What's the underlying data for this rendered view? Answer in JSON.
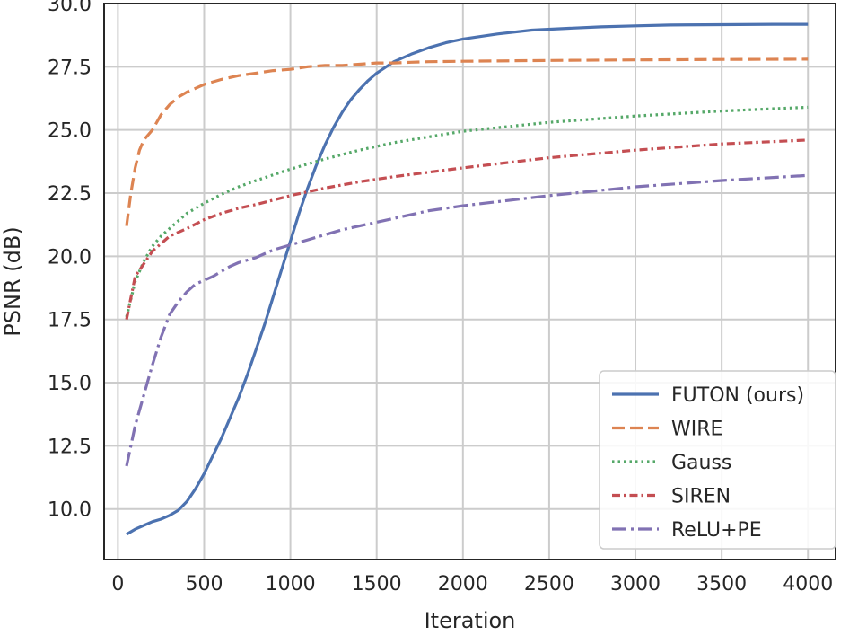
{
  "chart_data": {
    "type": "line",
    "xlabel": "Iteration",
    "ylabel": "PSNR (dB)",
    "xlim": [
      -80,
      4160
    ],
    "ylim": [
      8.0,
      30.0
    ],
    "xticks": [
      0,
      500,
      1000,
      1500,
      2000,
      2500,
      3000,
      3500,
      4000
    ],
    "yticks": [
      10.0,
      12.5,
      15.0,
      17.5,
      20.0,
      22.5,
      25.0,
      27.5,
      30.0
    ],
    "xtick_labels": [
      "0",
      "500",
      "1000",
      "1500",
      "2000",
      "2500",
      "3000",
      "3500",
      "4000"
    ],
    "ytick_labels": [
      "10.0",
      "12.5",
      "15.0",
      "17.5",
      "20.0",
      "22.5",
      "25.0",
      "27.5",
      "30.0"
    ],
    "grid": true,
    "legend_position": "bottom-right",
    "series": [
      {
        "name": "FUTON (ours)",
        "color": "#4c72b0",
        "dash": "solid",
        "x": [
          50,
          100,
          150,
          200,
          250,
          300,
          350,
          400,
          450,
          500,
          550,
          600,
          650,
          700,
          750,
          800,
          850,
          900,
          950,
          1000,
          1050,
          1100,
          1150,
          1200,
          1250,
          1300,
          1350,
          1400,
          1450,
          1500,
          1600,
          1700,
          1800,
          1900,
          2000,
          2200,
          2400,
          2600,
          2800,
          3000,
          3200,
          3400,
          3600,
          3800,
          4000
        ],
        "y": [
          9.0,
          9.2,
          9.35,
          9.5,
          9.6,
          9.75,
          9.95,
          10.3,
          10.8,
          11.4,
          12.1,
          12.8,
          13.6,
          14.4,
          15.3,
          16.3,
          17.3,
          18.4,
          19.5,
          20.6,
          21.7,
          22.7,
          23.6,
          24.4,
          25.1,
          25.7,
          26.2,
          26.6,
          26.95,
          27.25,
          27.7,
          28.0,
          28.25,
          28.45,
          28.6,
          28.8,
          28.95,
          29.02,
          29.08,
          29.12,
          29.15,
          29.16,
          29.17,
          29.18,
          29.18
        ]
      },
      {
        "name": "WIRE",
        "color": "#dd8452",
        "dash": "dashed",
        "x": [
          50,
          75,
          100,
          125,
          150,
          200,
          250,
          300,
          350,
          400,
          450,
          500,
          600,
          700,
          800,
          900,
          1000,
          1100,
          1200,
          1300,
          1400,
          1500,
          1600,
          1700,
          1800,
          2000,
          2500,
          3000,
          3500,
          4000
        ],
        "y": [
          21.2,
          22.5,
          23.5,
          24.2,
          24.6,
          25.0,
          25.6,
          26.0,
          26.3,
          26.5,
          26.65,
          26.8,
          27.0,
          27.15,
          27.25,
          27.35,
          27.4,
          27.5,
          27.55,
          27.55,
          27.6,
          27.65,
          27.65,
          27.68,
          27.7,
          27.72,
          27.75,
          27.77,
          27.79,
          27.8
        ]
      },
      {
        "name": "Gauss",
        "color": "#55a868",
        "dash": "dotted",
        "x": [
          50,
          100,
          150,
          200,
          250,
          300,
          400,
          500,
          600,
          700,
          800,
          1000,
          1200,
          1400,
          1600,
          2000,
          2500,
          3000,
          3500,
          4000
        ],
        "y": [
          17.6,
          19.0,
          19.8,
          20.4,
          20.8,
          21.1,
          21.7,
          22.1,
          22.45,
          22.75,
          23.0,
          23.45,
          23.85,
          24.2,
          24.5,
          24.95,
          25.3,
          25.55,
          25.75,
          25.9
        ]
      },
      {
        "name": "SIREN",
        "color": "#c44e52",
        "dash": "dashdot",
        "x": [
          50,
          100,
          150,
          200,
          250,
          300,
          400,
          500,
          600,
          700,
          800,
          1000,
          1200,
          1400,
          1600,
          2000,
          2500,
          3000,
          3500,
          4000
        ],
        "y": [
          17.5,
          19.2,
          19.7,
          20.2,
          20.5,
          20.8,
          21.1,
          21.45,
          21.7,
          21.9,
          22.05,
          22.4,
          22.7,
          22.95,
          23.15,
          23.5,
          23.9,
          24.2,
          24.45,
          24.6
        ]
      },
      {
        "name": "ReLU+PE",
        "color": "#8172b3",
        "dash": "longdashdot",
        "x": [
          50,
          100,
          150,
          200,
          250,
          300,
          350,
          400,
          450,
          500,
          550,
          600,
          650,
          700,
          750,
          800,
          850,
          900,
          950,
          1000,
          1100,
          1200,
          1300,
          1400,
          1500,
          1600,
          1800,
          2000,
          2500,
          3000,
          3500,
          4000
        ],
        "y": [
          11.7,
          13.3,
          14.5,
          15.7,
          16.8,
          17.7,
          18.2,
          18.6,
          18.9,
          19.05,
          19.2,
          19.4,
          19.6,
          19.75,
          19.85,
          19.95,
          20.1,
          20.25,
          20.35,
          20.45,
          20.65,
          20.85,
          21.05,
          21.2,
          21.35,
          21.5,
          21.8,
          22.0,
          22.4,
          22.75,
          23.0,
          23.2
        ]
      }
    ]
  }
}
